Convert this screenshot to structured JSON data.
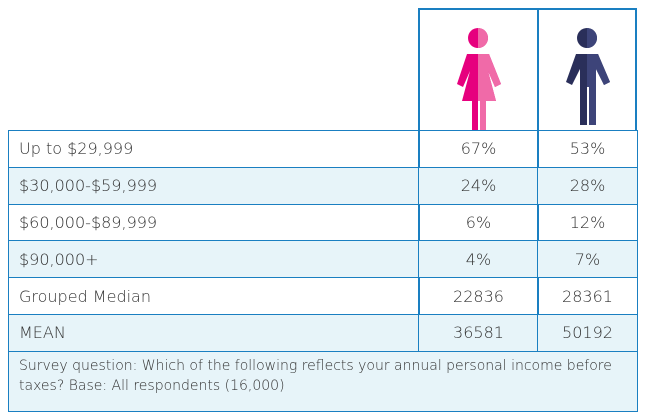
{
  "table": {
    "rows": [
      [
        "Up to $29,999",
        "67%",
        "53%"
      ],
      [
        "$30,000-$59,999",
        "24%",
        "28%"
      ],
      [
        "$60,000-$89,999",
        "6%",
        "12%"
      ],
      [
        "$90,000+",
        "4%",
        "7%"
      ],
      [
        "Grouped Median",
        "22836",
        "28361"
      ],
      [
        "MEAN",
        "36581",
        "50192"
      ]
    ],
    "footnote": "Survey question: Which of the following reflects your annual personal income before taxes? Base: All respondents (16,000)"
  }
}
